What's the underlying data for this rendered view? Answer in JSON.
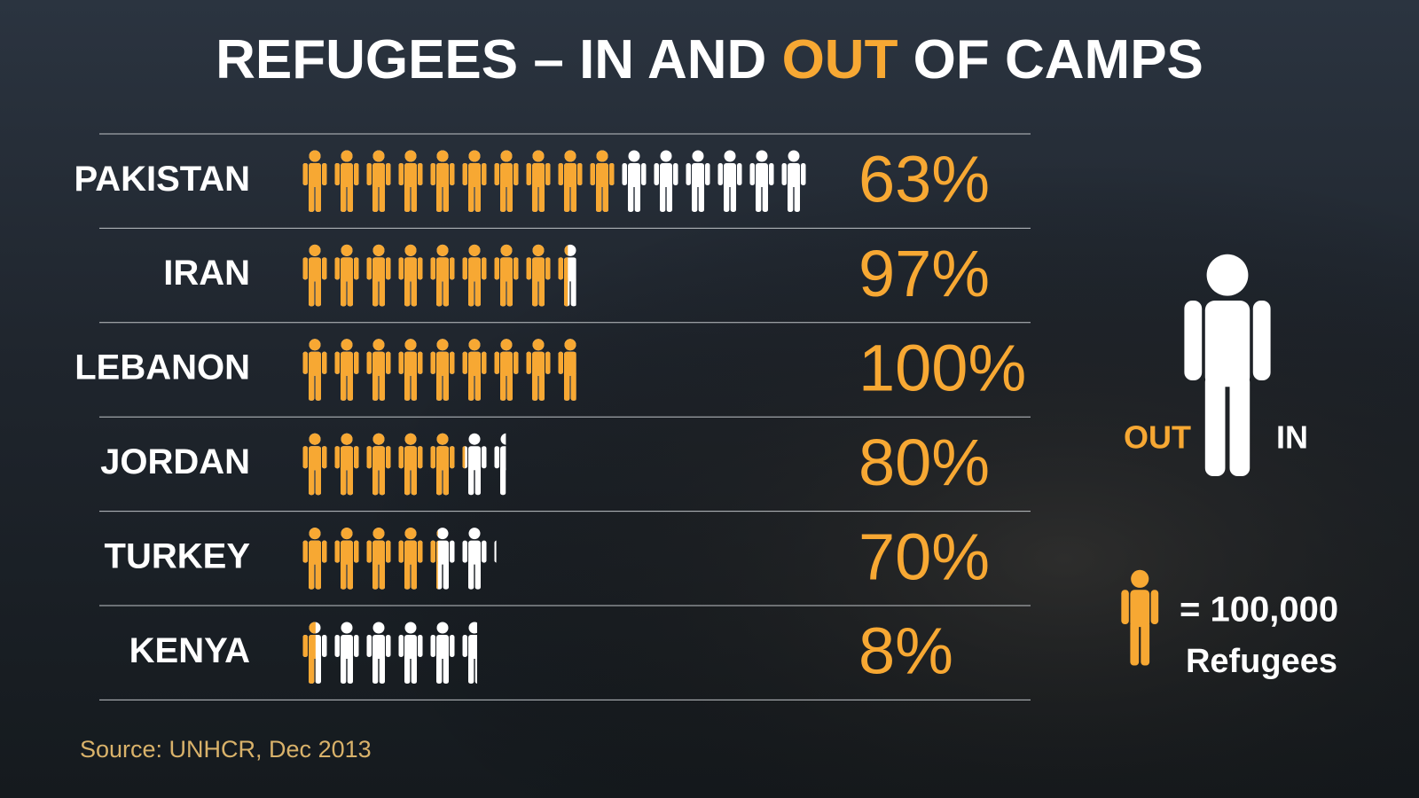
{
  "chart_data": {
    "type": "pictogram",
    "title_parts": [
      "REFUGEES – IN AND",
      "OUT",
      "OF CAMPS"
    ],
    "categories": [
      "PAKISTAN",
      "IRAN",
      "LEBANON",
      "JORDAN",
      "TURKEY",
      "KENYA"
    ],
    "values": [
      63,
      97,
      100,
      80,
      70,
      8
    ],
    "value_labels": [
      "63%",
      "97%",
      "100%",
      "80%",
      "70%",
      "8%"
    ],
    "totals": [
      1600000,
      860000,
      860000,
      640000,
      610000,
      550000
    ],
    "colors": {
      "out": "#f7a833",
      "in": "#ffffff"
    },
    "legend": {
      "out": "OUT",
      "in": "IN",
      "unit": {
        "value": 100000,
        "label": "= 100,000"
      },
      "unit_caption": "Refugees"
    },
    "source": "Source: UNHCR, Dec 2013"
  }
}
